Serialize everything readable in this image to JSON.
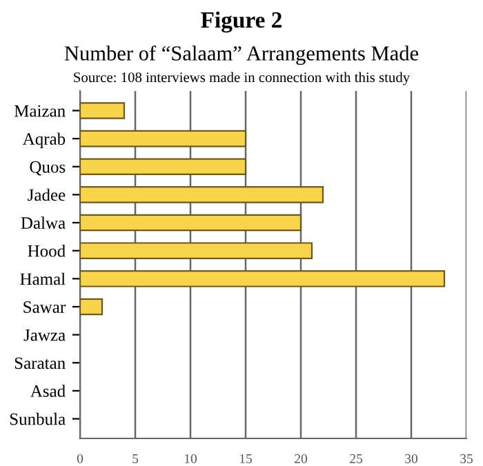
{
  "chart_data": {
    "type": "bar",
    "orientation": "horizontal",
    "title": "Figure 2",
    "subtitle": "Number of “Salaam” Arrangements Made",
    "annotations": [
      "Source: 108 interviews made in connection with this study"
    ],
    "categories": [
      "Maizan",
      "Aqrab",
      "Quos",
      "Jadee",
      "Dalwa",
      "Hood",
      "Hamal",
      "Sawar",
      "Jawza",
      "Saratan",
      "Asad",
      "Sunbula"
    ],
    "values": [
      4,
      15,
      15,
      22,
      20,
      21,
      33,
      2,
      0,
      0,
      0,
      0
    ],
    "color": "#f7d44a",
    "xlim": [
      0,
      35
    ],
    "xticks": [
      0,
      5,
      10,
      15,
      20,
      25,
      30,
      35
    ],
    "grid": "x",
    "legend": false
  }
}
